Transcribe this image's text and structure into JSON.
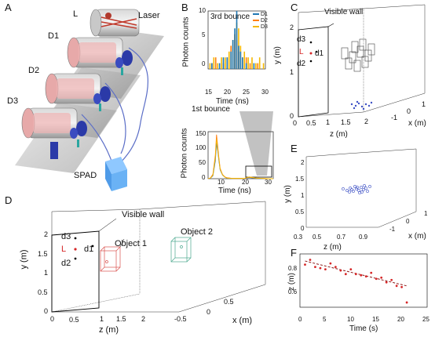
{
  "panels": {
    "A": {
      "letter": "A",
      "labels": {
        "L": "L",
        "laser": "Laser",
        "d1": "D1",
        "d2": "D2",
        "d3": "D3",
        "spad": "SPAD"
      }
    },
    "B": {
      "letter": "B",
      "top": {
        "annotation": "3rd bounce",
        "xlabel": "Time (ns)",
        "ylabel": "Photon counts",
        "xticks": [
          "15",
          "20",
          "25",
          "30"
        ],
        "yticks": [
          "0",
          "5",
          "10"
        ],
        "legend": [
          "D1",
          "D2",
          "D3"
        ]
      },
      "bottom": {
        "annotation": "1st bounce",
        "xlabel": "Time (ns)",
        "ylabel": "Photon counts",
        "xticks": [
          "10",
          "20",
          "30"
        ],
        "yticks": [
          "0",
          "50",
          "100",
          "150"
        ]
      }
    },
    "C": {
      "letter": "C",
      "wall_label": "Visible wall",
      "sensor_labels": {
        "d3": "d3",
        "L": "L",
        "d1": "d1",
        "d2": "d2"
      },
      "ylabel": "y (m)",
      "zlabel": "z (m)",
      "xlabel": "x (m)",
      "yticks": [
        "0",
        "1",
        "2"
      ],
      "zticks": [
        "0",
        "0.5",
        "1",
        "1.5",
        "2"
      ],
      "xticks": [
        "-1",
        "0",
        "1"
      ]
    },
    "D": {
      "letter": "D",
      "wall_label": "Visible wall",
      "object1": "Object 1",
      "object2": "Object 2",
      "sensor_labels": {
        "d3": "d3",
        "L": "L",
        "d1": "d1",
        "d2": "d2"
      },
      "ylabel": "y (m)",
      "zlabel": "z (m)",
      "xlabel": "x (m)",
      "yticks": [
        "0",
        "0.5",
        "1",
        "1.5",
        "2"
      ],
      "zticks": [
        "0",
        "0.5",
        "1",
        "1.5",
        "2"
      ],
      "xticks": [
        "-0.5",
        "0",
        "0.5"
      ]
    },
    "E": {
      "letter": "E",
      "ylabel": "y (m)",
      "zlabel": "z (m)",
      "xlabel": "x (m)",
      "yticks": [
        "0",
        "0.5",
        "1",
        "1.5",
        "2"
      ],
      "zticks": [
        "0.3",
        "0.5",
        "0.7",
        "0.9"
      ],
      "xticks": [
        "-1",
        "0",
        "1"
      ]
    },
    "F": {
      "letter": "F",
      "xlabel": "Time (s)",
      "ylabel": "z (m)",
      "xticks": [
        "0",
        "5",
        "10",
        "15",
        "20",
        "25"
      ],
      "yticks": [
        "0.6",
        "0.8"
      ]
    }
  },
  "colors": {
    "d1": "#1f77b4",
    "d2": "#ff7f0e",
    "d3": "#f5b800",
    "laser_marker": "#d62728",
    "object1": "#d9534f",
    "object2": "#4aa88e",
    "scatter_blue": "#3b4fc4",
    "fit_line": "#8b1a1a"
  },
  "chart_data": [
    {
      "type": "bar",
      "panel": "B-top",
      "xlabel": "Time (ns)",
      "ylabel": "Photon counts",
      "xlim": [
        15,
        30
      ],
      "ylim": [
        0,
        10
      ],
      "series": [
        {
          "name": "D1",
          "x": [
            16,
            18,
            19,
            20,
            21,
            21.5,
            22,
            22.5,
            23,
            23.5,
            24,
            25,
            27
          ],
          "values": [
            1,
            1,
            2,
            2,
            3,
            5,
            7,
            10,
            4,
            3,
            2,
            1,
            1
          ]
        },
        {
          "name": "D2",
          "x": [
            16,
            17,
            19,
            20,
            21,
            22,
            22.5,
            23,
            24,
            25,
            26,
            28
          ],
          "values": [
            1,
            2,
            1,
            2,
            4,
            6,
            5,
            3,
            2,
            2,
            1,
            1
          ]
        },
        {
          "name": "D3",
          "x": [
            15.5,
            16.5,
            17.5,
            18.5,
            19.5,
            20.5,
            21.5,
            22,
            22.5,
            23,
            23.5,
            24.5,
            25.5,
            26.5,
            27.5,
            28.5,
            29.5
          ],
          "values": [
            1,
            2,
            1,
            2,
            2,
            3,
            5,
            6,
            8,
            7,
            4,
            3,
            2,
            2,
            1,
            2,
            1
          ]
        }
      ]
    },
    {
      "type": "line",
      "panel": "B-bottom",
      "xlabel": "Time (ns)",
      "ylabel": "Photon counts",
      "xlim": [
        5,
        32
      ],
      "ylim": [
        0,
        160
      ],
      "series": [
        {
          "name": "D1",
          "x": [
            5,
            6,
            7,
            8,
            8.5,
            9,
            9.5,
            10,
            11,
            12,
            13,
            15,
            20,
            22,
            23,
            25,
            30,
            32
          ],
          "values": [
            0,
            2,
            10,
            60,
            120,
            95,
            60,
            30,
            12,
            5,
            2,
            1,
            1,
            4,
            3,
            1,
            0,
            0
          ]
        },
        {
          "name": "D2",
          "x": [
            5,
            6,
            7,
            8,
            8.5,
            9,
            9.5,
            10,
            11,
            12,
            13,
            15,
            20,
            22,
            23,
            25,
            30,
            32
          ],
          "values": [
            0,
            3,
            15,
            80,
            150,
            110,
            70,
            35,
            14,
            6,
            3,
            1,
            1,
            5,
            4,
            2,
            0,
            0
          ]
        },
        {
          "name": "D3",
          "x": [
            5,
            6,
            7,
            8,
            8.5,
            9,
            9.5,
            10,
            11,
            12,
            13,
            15,
            20,
            22,
            23,
            25,
            30,
            32
          ],
          "values": [
            0,
            2,
            12,
            70,
            135,
            100,
            65,
            32,
            13,
            5,
            2,
            1,
            1,
            6,
            5,
            2,
            0,
            0
          ]
        }
      ]
    },
    {
      "type": "scatter",
      "panel": "F",
      "xlabel": "Time (s)",
      "ylabel": "z (m)",
      "xlim": [
        0,
        25
      ],
      "ylim": [
        0.45,
        0.9
      ],
      "points": {
        "x": [
          1,
          2,
          3,
          4,
          5,
          6,
          7,
          8,
          9,
          10,
          11,
          12,
          13,
          14,
          15,
          16,
          17,
          18,
          19,
          20,
          21
        ],
        "y": [
          0.81,
          0.85,
          0.79,
          0.78,
          0.77,
          0.82,
          0.79,
          0.76,
          0.73,
          0.77,
          0.73,
          0.72,
          0.71,
          0.74,
          0.69,
          0.7,
          0.66,
          0.68,
          0.63,
          0.62,
          0.49
        ]
      },
      "fit": {
        "x": [
          1,
          21
        ],
        "y": [
          0.84,
          0.63
        ]
      }
    }
  ]
}
